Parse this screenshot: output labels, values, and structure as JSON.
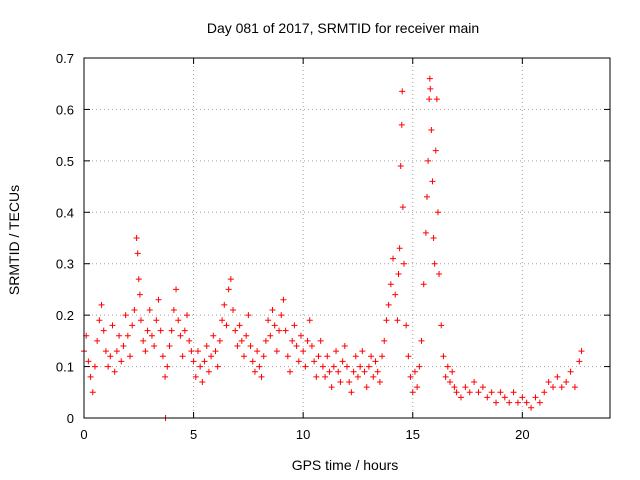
{
  "chart_data": {
    "type": "scatter",
    "title": "Day 081 of 2017, SRMTID for receiver main",
    "xlabel": "GPS time / hours",
    "ylabel": "SRMTID / TECUs",
    "xlim": [
      0,
      24
    ],
    "ylim": [
      0,
      0.7
    ],
    "xticks": [
      0,
      5,
      10,
      15,
      20
    ],
    "xtick_labels": [
      "0",
      "5",
      "10",
      "15",
      "20"
    ],
    "yticks": [
      0,
      0.1,
      0.2,
      0.3,
      0.4,
      0.5,
      0.6,
      0.7
    ],
    "ytick_labels": [
      "0",
      "0.1",
      "0.2",
      "0.3",
      "0.4",
      "0.5",
      "0.6",
      "0.7"
    ],
    "grid": true,
    "marker": "+",
    "color": "#ff0000",
    "series": [
      {
        "name": "SRMTID",
        "points": [
          [
            0.0,
            0.13
          ],
          [
            0.1,
            0.16
          ],
          [
            0.2,
            0.11
          ],
          [
            0.3,
            0.08
          ],
          [
            0.4,
            0.05
          ],
          [
            0.5,
            0.1
          ],
          [
            0.6,
            0.15
          ],
          [
            0.7,
            0.19
          ],
          [
            0.8,
            0.22
          ],
          [
            0.9,
            0.17
          ],
          [
            1.0,
            0.13
          ],
          [
            1.1,
            0.1
          ],
          [
            1.2,
            0.12
          ],
          [
            1.3,
            0.18
          ],
          [
            1.4,
            0.09
          ],
          [
            1.5,
            0.13
          ],
          [
            1.6,
            0.16
          ],
          [
            1.7,
            0.11
          ],
          [
            1.8,
            0.14
          ],
          [
            1.9,
            0.2
          ],
          [
            2.0,
            0.16
          ],
          [
            2.1,
            0.12
          ],
          [
            2.2,
            0.18
          ],
          [
            2.3,
            0.21
          ],
          [
            2.4,
            0.35
          ],
          [
            2.45,
            0.32
          ],
          [
            2.5,
            0.27
          ],
          [
            2.55,
            0.24
          ],
          [
            2.6,
            0.19
          ],
          [
            2.7,
            0.15
          ],
          [
            2.8,
            0.13
          ],
          [
            2.9,
            0.17
          ],
          [
            3.0,
            0.21
          ],
          [
            3.1,
            0.16
          ],
          [
            3.2,
            0.14
          ],
          [
            3.3,
            0.19
          ],
          [
            3.4,
            0.23
          ],
          [
            3.5,
            0.17
          ],
          [
            3.6,
            0.12
          ],
          [
            3.7,
            0.08
          ],
          [
            3.72,
            0.0
          ],
          [
            3.8,
            0.1
          ],
          [
            3.9,
            0.14
          ],
          [
            4.0,
            0.17
          ],
          [
            4.1,
            0.21
          ],
          [
            4.2,
            0.25
          ],
          [
            4.3,
            0.19
          ],
          [
            4.4,
            0.16
          ],
          [
            4.5,
            0.12
          ],
          [
            4.6,
            0.17
          ],
          [
            4.7,
            0.2
          ],
          [
            4.8,
            0.15
          ],
          [
            4.9,
            0.13
          ],
          [
            5.0,
            0.11
          ],
          [
            5.1,
            0.08
          ],
          [
            5.2,
            0.13
          ],
          [
            5.3,
            0.1
          ],
          [
            5.4,
            0.07
          ],
          [
            5.5,
            0.11
          ],
          [
            5.6,
            0.14
          ],
          [
            5.7,
            0.09
          ],
          [
            5.8,
            0.12
          ],
          [
            5.9,
            0.16
          ],
          [
            6.0,
            0.13
          ],
          [
            6.1,
            0.1
          ],
          [
            6.2,
            0.15
          ],
          [
            6.3,
            0.19
          ],
          [
            6.4,
            0.22
          ],
          [
            6.5,
            0.18
          ],
          [
            6.6,
            0.25
          ],
          [
            6.7,
            0.27
          ],
          [
            6.8,
            0.21
          ],
          [
            6.9,
            0.17
          ],
          [
            7.0,
            0.14
          ],
          [
            7.1,
            0.18
          ],
          [
            7.2,
            0.15
          ],
          [
            7.3,
            0.12
          ],
          [
            7.4,
            0.16
          ],
          [
            7.5,
            0.2
          ],
          [
            7.6,
            0.14
          ],
          [
            7.7,
            0.11
          ],
          [
            7.8,
            0.09
          ],
          [
            7.9,
            0.13
          ],
          [
            8.0,
            0.1
          ],
          [
            8.1,
            0.08
          ],
          [
            8.2,
            0.12
          ],
          [
            8.3,
            0.15
          ],
          [
            8.4,
            0.19
          ],
          [
            8.5,
            0.16
          ],
          [
            8.6,
            0.21
          ],
          [
            8.7,
            0.18
          ],
          [
            8.8,
            0.13
          ],
          [
            8.9,
            0.17
          ],
          [
            9.0,
            0.2
          ],
          [
            9.1,
            0.23
          ],
          [
            9.2,
            0.17
          ],
          [
            9.3,
            0.12
          ],
          [
            9.4,
            0.09
          ],
          [
            9.5,
            0.15
          ],
          [
            9.6,
            0.18
          ],
          [
            9.7,
            0.14
          ],
          [
            9.8,
            0.11
          ],
          [
            9.9,
            0.16
          ],
          [
            10.0,
            0.13
          ],
          [
            10.1,
            0.1
          ],
          [
            10.2,
            0.15
          ],
          [
            10.3,
            0.19
          ],
          [
            10.4,
            0.14
          ],
          [
            10.5,
            0.11
          ],
          [
            10.6,
            0.08
          ],
          [
            10.7,
            0.12
          ],
          [
            10.8,
            0.15
          ],
          [
            10.9,
            0.1
          ],
          [
            11.0,
            0.08
          ],
          [
            11.1,
            0.12
          ],
          [
            11.2,
            0.09
          ],
          [
            11.3,
            0.06
          ],
          [
            11.4,
            0.1
          ],
          [
            11.5,
            0.13
          ],
          [
            11.6,
            0.09
          ],
          [
            11.7,
            0.07
          ],
          [
            11.8,
            0.11
          ],
          [
            11.9,
            0.14
          ],
          [
            12.0,
            0.1
          ],
          [
            12.1,
            0.07
          ],
          [
            12.2,
            0.05
          ],
          [
            12.3,
            0.09
          ],
          [
            12.4,
            0.12
          ],
          [
            12.5,
            0.08
          ],
          [
            12.6,
            0.1
          ],
          [
            12.7,
            0.13
          ],
          [
            12.8,
            0.09
          ],
          [
            12.9,
            0.06
          ],
          [
            13.0,
            0.1
          ],
          [
            13.1,
            0.12
          ],
          [
            13.2,
            0.08
          ],
          [
            13.3,
            0.11
          ],
          [
            13.4,
            0.09
          ],
          [
            13.5,
            0.07
          ],
          [
            13.6,
            0.12
          ],
          [
            13.7,
            0.15
          ],
          [
            13.8,
            0.19
          ],
          [
            13.9,
            0.22
          ],
          [
            14.0,
            0.26
          ],
          [
            14.1,
            0.31
          ],
          [
            14.2,
            0.24
          ],
          [
            14.3,
            0.19
          ],
          [
            14.35,
            0.28
          ],
          [
            14.4,
            0.33
          ],
          [
            14.45,
            0.49
          ],
          [
            14.5,
            0.57
          ],
          [
            14.52,
            0.635
          ],
          [
            14.55,
            0.41
          ],
          [
            14.6,
            0.3
          ],
          [
            14.7,
            0.18
          ],
          [
            14.8,
            0.12
          ],
          [
            14.9,
            0.08
          ],
          [
            15.0,
            0.05
          ],
          [
            15.1,
            0.09
          ],
          [
            15.2,
            0.06
          ],
          [
            15.3,
            0.1
          ],
          [
            15.4,
            0.15
          ],
          [
            15.5,
            0.26
          ],
          [
            15.6,
            0.36
          ],
          [
            15.65,
            0.43
          ],
          [
            15.7,
            0.5
          ],
          [
            15.75,
            0.62
          ],
          [
            15.78,
            0.66
          ],
          [
            15.8,
            0.64
          ],
          [
            15.85,
            0.56
          ],
          [
            15.9,
            0.46
          ],
          [
            15.95,
            0.35
          ],
          [
            16.0,
            0.3
          ],
          [
            16.05,
            0.52
          ],
          [
            16.1,
            0.62
          ],
          [
            16.15,
            0.4
          ],
          [
            16.2,
            0.28
          ],
          [
            16.3,
            0.18
          ],
          [
            16.4,
            0.12
          ],
          [
            16.5,
            0.08
          ],
          [
            16.6,
            0.1
          ],
          [
            16.7,
            0.07
          ],
          [
            16.8,
            0.09
          ],
          [
            16.9,
            0.06
          ],
          [
            17.0,
            0.05
          ],
          [
            17.2,
            0.04
          ],
          [
            17.4,
            0.06
          ],
          [
            17.6,
            0.05
          ],
          [
            17.8,
            0.07
          ],
          [
            18.0,
            0.05
          ],
          [
            18.2,
            0.06
          ],
          [
            18.4,
            0.04
          ],
          [
            18.6,
            0.05
          ],
          [
            18.8,
            0.03
          ],
          [
            19.0,
            0.05
          ],
          [
            19.2,
            0.04
          ],
          [
            19.4,
            0.03
          ],
          [
            19.6,
            0.05
          ],
          [
            19.8,
            0.03
          ],
          [
            20.0,
            0.04
          ],
          [
            20.2,
            0.03
          ],
          [
            20.4,
            0.02
          ],
          [
            20.6,
            0.04
          ],
          [
            20.8,
            0.03
          ],
          [
            21.0,
            0.05
          ],
          [
            21.2,
            0.07
          ],
          [
            21.4,
            0.06
          ],
          [
            21.6,
            0.08
          ],
          [
            21.8,
            0.06
          ],
          [
            22.0,
            0.07
          ],
          [
            22.2,
            0.09
          ],
          [
            22.4,
            0.06
          ],
          [
            22.6,
            0.11
          ],
          [
            22.7,
            0.13
          ]
        ]
      }
    ]
  }
}
